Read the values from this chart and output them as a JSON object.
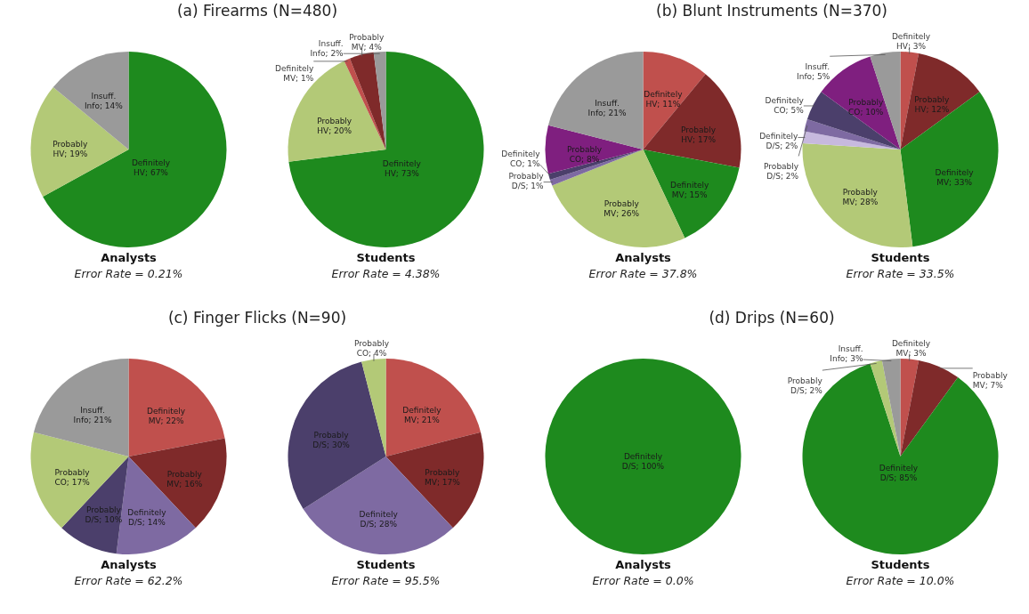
{
  "chart_data": [
    {
      "type": "pie",
      "title": "(a)    Firearms (N=480)",
      "xlabel": "Analysts",
      "annotations": [
        "Error Rate = 0.21%"
      ],
      "categories": [
        "Definitely HV",
        "Probably HV",
        "Insuff. Info"
      ],
      "values": [
        67,
        19,
        14
      ],
      "value_labels": [
        "67%",
        "19%",
        "14%"
      ],
      "colors": [
        "#1e8a1e",
        "#b3c977",
        "#9a9a9a"
      ]
    },
    {
      "type": "pie",
      "xlabel": "Students",
      "annotations": [
        "Error Rate = 4.38%"
      ],
      "categories": [
        "Definitely HV",
        "Probably HV",
        "Definitely MV",
        "Probably MV",
        "Insuff. Info"
      ],
      "values": [
        73,
        20,
        1,
        4,
        2
      ],
      "value_labels": [
        "73%",
        "20%",
        "1%",
        "4%",
        "2%"
      ],
      "colors": [
        "#1e8a1e",
        "#b3c977",
        "#c0504d",
        "#7f2a2a",
        "#9a9a9a"
      ]
    },
    {
      "type": "pie",
      "title": "(b) Blunt Instruments (N=370)",
      "xlabel": "Analysts",
      "annotations": [
        "Error Rate = 37.8%"
      ],
      "categories": [
        "Definitely HV",
        "Probably HV",
        "Definitely MV",
        "Probably MV",
        "Probably D/S",
        "Definitely CO",
        "Probably CO",
        "Insuff. Info"
      ],
      "values": [
        11,
        17,
        15,
        26,
        1,
        1,
        8,
        21
      ],
      "value_labels": [
        "11%",
        "17%",
        "15%",
        "26%",
        "1%",
        "1%",
        "8%",
        "21%"
      ],
      "colors": [
        "#c0504d",
        "#7f2a2a",
        "#1e8a1e",
        "#b3c977",
        "#7e6aa2",
        "#4b3f6b",
        "#7f1f7f",
        "#9a9a9a"
      ]
    },
    {
      "type": "pie",
      "xlabel": "Students",
      "annotations": [
        "Error Rate = 33.5%"
      ],
      "categories": [
        "Definitely HV",
        "Probably HV",
        "Definitely MV",
        "Probably MV",
        "Definitely D/S",
        "Probably D/S",
        "Definitely CO",
        "Probably CO",
        "Insuff. Info"
      ],
      "values": [
        3,
        12,
        33,
        28,
        2,
        2,
        5,
        10,
        5
      ],
      "value_labels": [
        "3%",
        "12%",
        "33%",
        "28%",
        "2%",
        "2%",
        "5%",
        "10%",
        "5%"
      ],
      "colors": [
        "#c0504d",
        "#7f2a2a",
        "#1e8a1e",
        "#b3c977",
        "#c7b9de",
        "#7e6aa2",
        "#4b3f6b",
        "#7f1f7f",
        "#9a9a9a"
      ]
    },
    {
      "type": "pie",
      "title": "(c)    Finger Flicks (N=90)",
      "xlabel": "Analysts",
      "annotations": [
        "Error Rate = 62.2%"
      ],
      "categories": [
        "Definitely MV",
        "Probably MV",
        "Definitely D/S",
        "Probably D/S",
        "Probably CO",
        "Insuff. Info"
      ],
      "values": [
        22,
        16,
        14,
        10,
        17,
        21
      ],
      "value_labels": [
        "22%",
        "16%",
        "14%",
        "10%",
        "17%",
        "21%"
      ],
      "colors": [
        "#c0504d",
        "#7f2a2a",
        "#7e6aa2",
        "#4b3f6b",
        "#b3c977",
        "#9a9a9a"
      ]
    },
    {
      "type": "pie",
      "xlabel": "Students",
      "annotations": [
        "Error Rate = 95.5%"
      ],
      "categories": [
        "Definitely MV",
        "Probably MV",
        "Definitely D/S",
        "Probably D/S",
        "Probably CO"
      ],
      "values": [
        21,
        17,
        28,
        30,
        4
      ],
      "value_labels": [
        "21%",
        "17%",
        "28%",
        "30%",
        "4%"
      ],
      "colors": [
        "#c0504d",
        "#7f2a2a",
        "#7e6aa2",
        "#4b3f6b",
        "#b3c977"
      ]
    },
    {
      "type": "pie",
      "title": "(d) Drips (N=60)",
      "xlabel": "Analysts",
      "annotations": [
        "Error Rate = 0.0%"
      ],
      "categories": [
        "Definitely D/S"
      ],
      "values": [
        100
      ],
      "value_labels": [
        "100%"
      ],
      "colors": [
        "#1e8a1e"
      ]
    },
    {
      "type": "pie",
      "xlabel": "Students",
      "annotations": [
        "Error Rate = 10.0%"
      ],
      "categories": [
        "Definitely MV",
        "Probably MV",
        "Definitely D/S",
        "Probably D/S",
        "Insuff. Info"
      ],
      "values": [
        3,
        7,
        85,
        2,
        3
      ],
      "value_labels": [
        "3%",
        "7%",
        "85%",
        "2%",
        "3%"
      ],
      "colors": [
        "#c0504d",
        "#7f2a2a",
        "#1e8a1e",
        "#b3c977",
        "#9a9a9a"
      ]
    }
  ]
}
